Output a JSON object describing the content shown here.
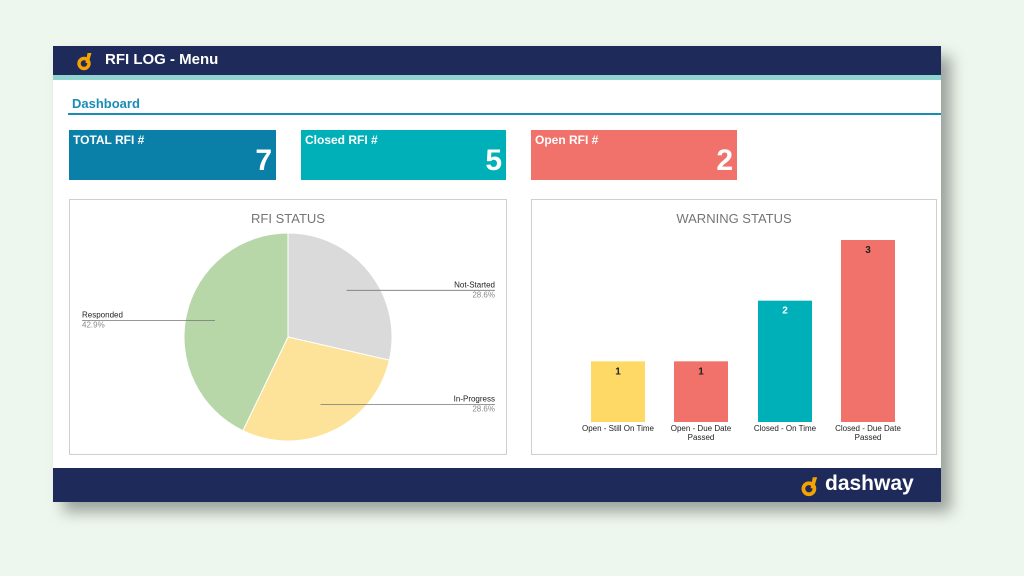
{
  "header": {
    "title": "RFI LOG - Menu"
  },
  "section": {
    "title": "Dashboard"
  },
  "kpis": [
    {
      "label": "TOTAL RFI #",
      "value": "7",
      "color": "#0a7fa8"
    },
    {
      "label": "Closed RFI #",
      "value": "5",
      "color": "#00b0b9"
    },
    {
      "label": "Open RFI #",
      "value": "2",
      "color": "#f0726a"
    }
  ],
  "footer": {
    "brand": "dashway"
  },
  "colors": {
    "navy": "#1e2a5a",
    "accent": "#8fd4cf",
    "logo": "#f5a300",
    "title_blue": "#1a8cb8"
  },
  "chart_data": [
    {
      "type": "pie",
      "title": "RFI STATUS",
      "slices": [
        {
          "label": "Not-Started",
          "value": 28.6,
          "pct": "28.6%",
          "color": "#dadada"
        },
        {
          "label": "In-Progress",
          "value": 28.6,
          "pct": "28.6%",
          "color": "#fde39a"
        },
        {
          "label": "Responded",
          "value": 42.9,
          "pct": "42.9%",
          "color": "#b7d7a8"
        }
      ]
    },
    {
      "type": "bar",
      "title": "WARNING STATUS",
      "categories": [
        [
          "Open  - Still On Time"
        ],
        [
          "Open - Due Date",
          "Passed"
        ],
        [
          "Closed - On Time"
        ],
        [
          "Closed - Due Date",
          "Passed"
        ]
      ],
      "values": [
        1,
        1,
        2,
        3
      ],
      "colors": [
        "#ffd966",
        "#f0726a",
        "#00b0b9",
        "#f0726a"
      ],
      "ylim": [
        0,
        3
      ]
    }
  ]
}
